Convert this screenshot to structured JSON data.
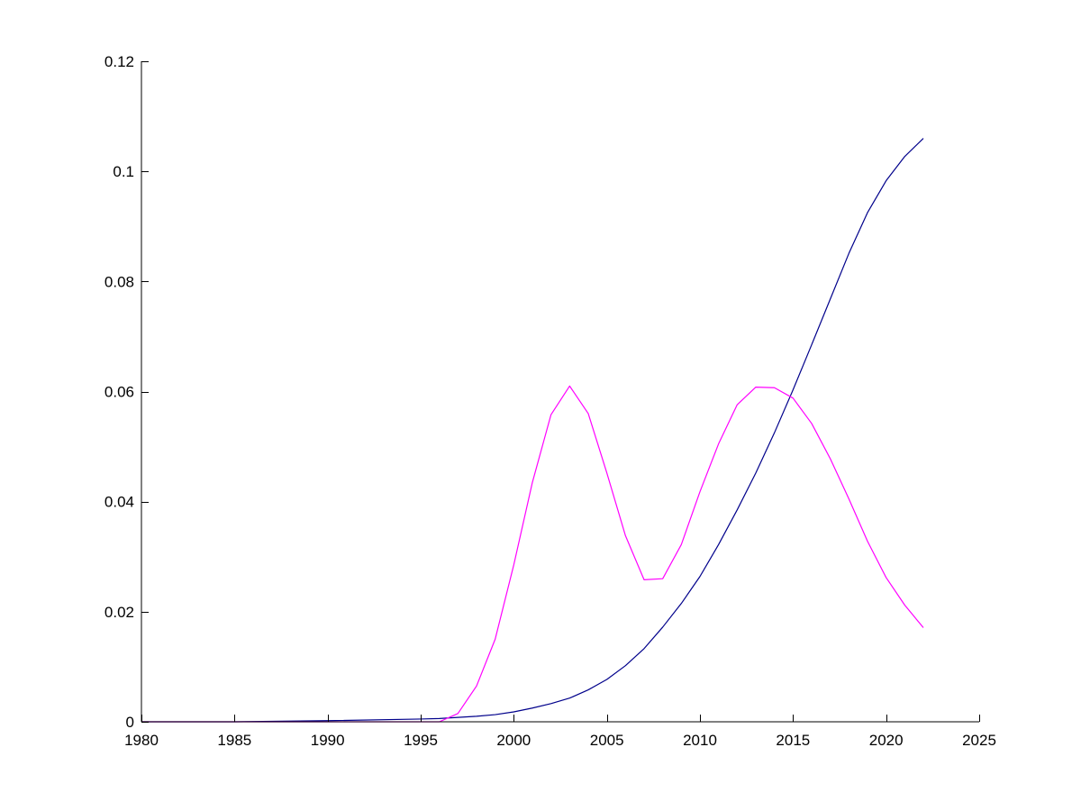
{
  "chart_data": {
    "type": "line",
    "title": "",
    "xlabel": "",
    "ylabel": "",
    "grid": false,
    "legend": "none",
    "xlim": [
      1980,
      2025
    ],
    "ylim": [
      0,
      0.12
    ],
    "x_ticks": [
      1980,
      1985,
      1990,
      1995,
      2000,
      2005,
      2010,
      2015,
      2020,
      2025
    ],
    "x_tick_labels": [
      "1980",
      "1985",
      "1990",
      "1995",
      "2000",
      "2005",
      "2010",
      "2015",
      "2020",
      "2025"
    ],
    "y_ticks": [
      0,
      0.02,
      0.04,
      0.06,
      0.08,
      0.1,
      0.12
    ],
    "y_tick_labels": [
      "0",
      "0.02",
      "0.04",
      "0.06",
      "0.08",
      "0.1",
      "0.12"
    ],
    "series": [
      {
        "color": "#00008b",
        "x": [
          1980,
          1985,
          1990,
          1995,
          1996,
          1997,
          1998,
          1999,
          2000,
          2001,
          2002,
          2003,
          2004,
          2005,
          2006,
          2007,
          2008,
          2009,
          2010,
          2011,
          2012,
          2013,
          2014,
          2015,
          2016,
          2017,
          2018,
          2019,
          2020,
          2021,
          2022
        ],
        "y": [
          0,
          0,
          0.0002,
          0.0005,
          0.0006,
          0.0008,
          0.001,
          0.0013,
          0.0018,
          0.0025,
          0.0033,
          0.0043,
          0.0058,
          0.0077,
          0.0102,
          0.0133,
          0.0172,
          0.0215,
          0.0264,
          0.0322,
          0.0385,
          0.0452,
          0.0525,
          0.0603,
          0.0685,
          0.0768,
          0.0851,
          0.0925,
          0.0983,
          0.1027,
          0.106
        ]
      },
      {
        "color": "#ff00ff",
        "x": [
          1980,
          1985,
          1990,
          1995,
          1996,
          1997,
          1998,
          1999,
          2000,
          2001,
          2002,
          2003,
          2004,
          2005,
          2006,
          2007,
          2008,
          2009,
          2010,
          2011,
          2012,
          2013,
          2014,
          2015,
          2016,
          2017,
          2018,
          2019,
          2020,
          2021,
          2022
        ],
        "y": [
          0,
          0,
          0,
          0,
          0,
          0.0015,
          0.0065,
          0.015,
          0.0285,
          0.0435,
          0.0558,
          0.061,
          0.056,
          0.0452,
          0.0338,
          0.0258,
          0.026,
          0.0322,
          0.0418,
          0.0505,
          0.0576,
          0.0608,
          0.0607,
          0.0588,
          0.0542,
          0.0478,
          0.0405,
          0.0328,
          0.0262,
          0.0212,
          0.0171
        ]
      }
    ]
  }
}
